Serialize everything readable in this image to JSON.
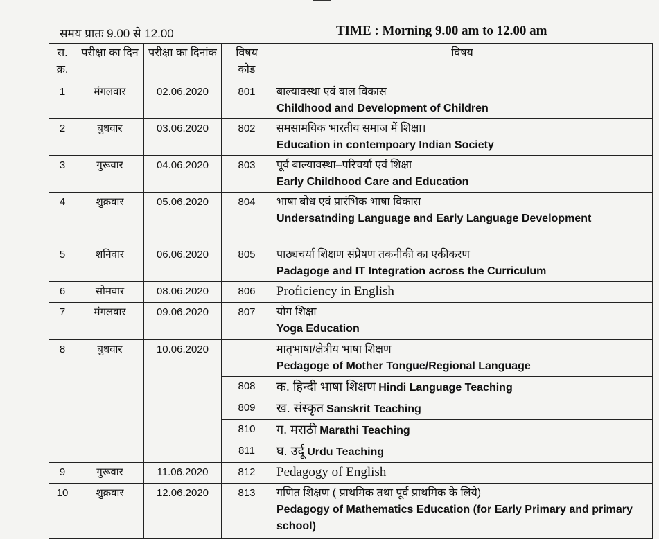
{
  "time_hindi": "समय प्रातः  9.00 से 12.00",
  "time_english": "TIME : Morning  9.00  am to 12.00 am",
  "headers": {
    "sr": "स. क्र.",
    "day": "परीक्षा का दिन",
    "date": "परीक्षा का दिनांक",
    "code": "विषय कोड",
    "subject": "विषय"
  },
  "rows": [
    {
      "sr": "1",
      "day": "मंगलवार",
      "date": "02.06.2020",
      "code": "801",
      "hi": "बाल्यावस्था एवं बाल विकास",
      "en": "Childhood  and Development of Children"
    },
    {
      "sr": "2",
      "day": "बुधवार",
      "date": "03.06.2020",
      "code": "802",
      "hi": "समसामयिक भारतीय समाज में शिक्षा।",
      "en": "Education in contempoary Indian Society"
    },
    {
      "sr": "3",
      "day": "गुरूवार",
      "date": "04.06.2020",
      "code": "803",
      "hi": "पूर्व बाल्यावस्था–परिचर्या एवं शिक्षा",
      "en": "Early Childhood Care and Education"
    },
    {
      "sr": "4",
      "day": "शुक्रवार",
      "date": "05.06.2020",
      "code": "804",
      "hi": "भाषा बोध एवं प्रारंभिक भाषा विकास",
      "en": "Undersatnding Language and Early Language Development"
    },
    {
      "sr": "5",
      "day": "शनिवार",
      "date": "06.06.2020",
      "code": "805",
      "hi": "पाठ्यचर्या शिक्षण संप्रेषण तकनीकी का एकीकरण",
      "en": "Padagoge and IT Integration across the Curriculum"
    },
    {
      "sr": "6",
      "day": "सोमवार",
      "date": "08.06.2020",
      "code": "806",
      "plain": "Proficiency in English"
    },
    {
      "sr": "7",
      "day": "मंगलवार",
      "date": "09.06.2020",
      "code": "807",
      "hi": "योग शिक्षा",
      "en": "Yoga Education"
    },
    {
      "sr": "8",
      "day": "बुधवार",
      "date": "10.06.2020",
      "hi": "मातृभाषा/क्षेत्रीय भाषा शिक्षण",
      "en": "Pedagoge of Mother Tongue/Regional Language",
      "sub": [
        {
          "code": "808",
          "hi": "क. हिन्दी भाषा शिक्षण",
          "en": "Hindi Language Teaching"
        },
        {
          "code": "809",
          "hi": "ख. संस्कृत",
          "en": "Sanskrit Teaching"
        },
        {
          "code": "810",
          "hi": "ग. मराठी",
          "en": "Marathi Teaching"
        },
        {
          "code": "811",
          "hi": "घ. उर्दू",
          "en": "Urdu Teaching"
        }
      ]
    },
    {
      "sr": "9",
      "day": "गुरूवार",
      "date": "11.06.2020",
      "code": "812",
      "plain": "Pedagogy of English"
    },
    {
      "sr": "10",
      "day": "शुक्रवार",
      "date": "12.06.2020",
      "code": "813",
      "hi": "गणित शिक्षण ( प्राथमिक तथा पूर्व प्राथमिक के लिये)",
      "en": "Pedagogy of Mathematics Education (for Early Primary and primary school)"
    }
  ]
}
